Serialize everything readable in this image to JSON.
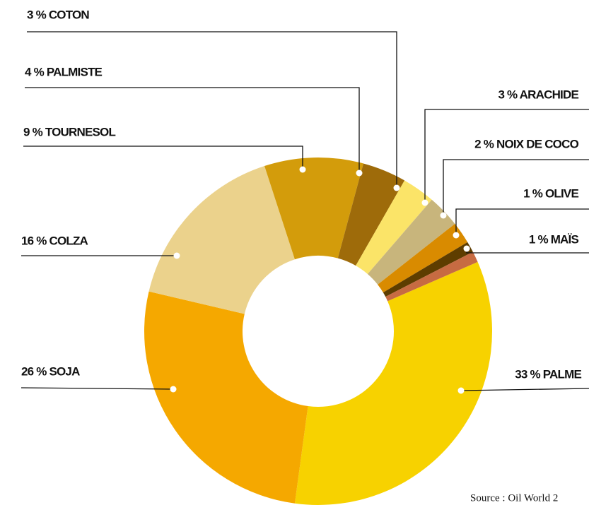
{
  "chart_data": {
    "type": "donut",
    "values": [
      33,
      26,
      16,
      9,
      4,
      3,
      3,
      2,
      1,
      1
    ],
    "value_labels": [
      "33 % PALME",
      "26 % SOJA",
      "16 % COLZA",
      "9 % TOURNESOL",
      "4 % PALMISTE",
      "3 % COTON",
      "3 % ARACHIDE",
      "2 % NOIX DE COCO",
      "1 % OLIVE",
      "1 % MAÏS"
    ],
    "colors": [
      "#f7d200",
      "#f5a800",
      "#ebd28c",
      "#d39c0b",
      "#9e6b0a",
      "#fbe468",
      "#c8b57c",
      "#d98b00",
      "#5e3d00",
      "#c76b42"
    ],
    "source": "Source : Oil World 2"
  }
}
